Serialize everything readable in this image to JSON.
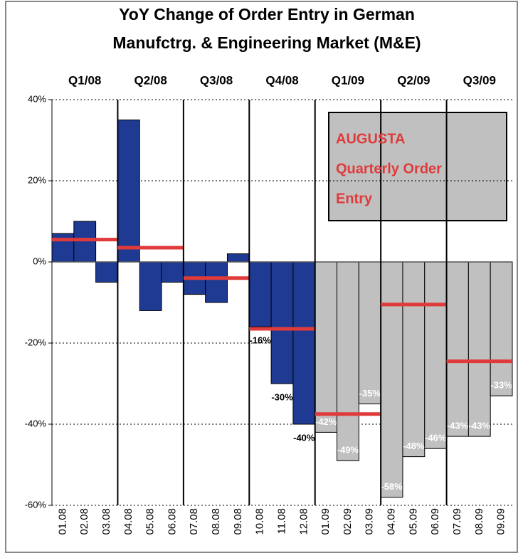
{
  "chart_data": {
    "type": "bar",
    "title": [
      "YoY Change of Order Entry in German",
      "Manufctrg. & Engineering Market (M&E)"
    ],
    "categories": [
      "01.08",
      "02.08",
      "03.08",
      "04.08",
      "05.08",
      "06.08",
      "07.08",
      "08.08",
      "09.08",
      "10.08",
      "11.08",
      "12.08",
      "01.09",
      "02.09",
      "03.09",
      "04.09",
      "05.09",
      "06.09",
      "07.09",
      "08.09",
      "09.09"
    ],
    "values": [
      7,
      10,
      -5,
      35,
      -12,
      -5,
      -8,
      -10,
      2,
      -16,
      -30,
      -40,
      -42,
      -49,
      -35,
      -58,
      -48,
      -46,
      -43,
      -43,
      -33
    ],
    "value_labels": [
      null,
      null,
      null,
      null,
      null,
      null,
      null,
      null,
      null,
      "-16%",
      "-30%",
      "-40%",
      "-42%",
      "-49%",
      "-35%",
      "-58%",
      "-48%",
      "-46%",
      "-43%",
      "-43%",
      "-33%"
    ],
    "bar_colors": [
      "#1f3a93",
      "#1f3a93",
      "#1f3a93",
      "#1f3a93",
      "#1f3a93",
      "#1f3a93",
      "#1f3a93",
      "#1f3a93",
      "#1f3a93",
      "#1f3a93",
      "#1f3a93",
      "#1f3a93",
      "#c0c0c0",
      "#c0c0c0",
      "#c0c0c0",
      "#c0c0c0",
      "#c0c0c0",
      "#c0c0c0",
      "#c0c0c0",
      "#c0c0c0",
      "#c0c0c0"
    ],
    "quarters": [
      {
        "label": "Q1/08",
        "value": 5.5
      },
      {
        "label": "Q2/08",
        "value": 3.5
      },
      {
        "label": "Q3/08",
        "value": -4
      },
      {
        "label": "Q4/08",
        "value": -16.5
      },
      {
        "label": "Q1/09",
        "value": -37.5
      },
      {
        "label": "Q2/09",
        "value": -10.5
      },
      {
        "label": "Q3/09",
        "value": -24.5
      }
    ],
    "quarter_color": "#e03a3a",
    "annotation": [
      "AUGUSTA",
      "Quarterly Order",
      "Entry"
    ],
    "ylim": [
      -60,
      40
    ],
    "yticks": [
      {
        "value": -60,
        "label": "-60%"
      },
      {
        "value": -40,
        "label": "-40%"
      },
      {
        "value": -20,
        "label": "-20%"
      },
      {
        "value": 0,
        "label": "0%"
      },
      {
        "value": 20,
        "label": "20%"
      },
      {
        "value": 40,
        "label": "40%"
      }
    ],
    "grid": true
  }
}
